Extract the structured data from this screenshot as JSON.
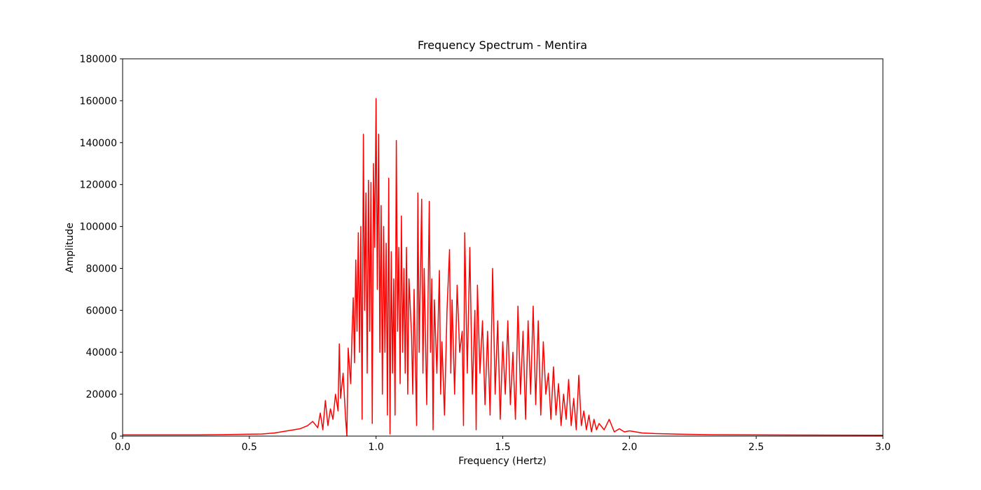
{
  "chart_data": {
    "type": "line",
    "title": "Frequency Spectrum - Mentira",
    "x_label": "Frequency (Hertz)",
    "y_label": "Amplitude",
    "xlim": [
      0,
      3
    ],
    "ylim": [
      0,
      180000
    ],
    "xticks": [
      {
        "value": 0,
        "label": "0.0"
      },
      0.5,
      {
        "value": 1,
        "label": "1.0"
      },
      1.5,
      {
        "value": 2,
        "label": "2.0"
      },
      2.5,
      {
        "value": 3,
        "label": "3.0"
      }
    ],
    "yticks": [
      0,
      20000,
      40000,
      60000,
      80000,
      100000,
      120000,
      140000,
      160000,
      180000
    ],
    "grid": false,
    "color": "#ff0000",
    "x": [
      0,
      0.1,
      0.2,
      0.3,
      0.4,
      0.5,
      0.55,
      0.6,
      0.65,
      0.7,
      0.73,
      0.75,
      0.77,
      0.78,
      0.79,
      0.8,
      0.81,
      0.82,
      0.83,
      0.84,
      0.85,
      0.855,
      0.86,
      0.87,
      0.88,
      0.885,
      0.89,
      0.9,
      0.905,
      0.91,
      0.915,
      0.92,
      0.925,
      0.93,
      0.935,
      0.94,
      0.945,
      0.95,
      0.955,
      0.96,
      0.965,
      0.97,
      0.975,
      0.98,
      0.985,
      0.99,
      0.995,
      1.0,
      1.005,
      1.01,
      1.015,
      1.02,
      1.025,
      1.03,
      1.035,
      1.04,
      1.045,
      1.05,
      1.055,
      1.06,
      1.065,
      1.07,
      1.075,
      1.08,
      1.085,
      1.09,
      1.095,
      1.1,
      1.105,
      1.11,
      1.115,
      1.12,
      1.125,
      1.13,
      1.14,
      1.145,
      1.15,
      1.16,
      1.165,
      1.17,
      1.18,
      1.185,
      1.19,
      1.2,
      1.21,
      1.215,
      1.22,
      1.225,
      1.23,
      1.24,
      1.25,
      1.255,
      1.26,
      1.27,
      1.28,
      1.29,
      1.295,
      1.3,
      1.31,
      1.32,
      1.33,
      1.34,
      1.345,
      1.35,
      1.36,
      1.37,
      1.38,
      1.39,
      1.395,
      1.4,
      1.41,
      1.42,
      1.43,
      1.44,
      1.45,
      1.46,
      1.47,
      1.48,
      1.49,
      1.5,
      1.51,
      1.52,
      1.53,
      1.54,
      1.55,
      1.56,
      1.57,
      1.58,
      1.59,
      1.6,
      1.61,
      1.62,
      1.63,
      1.64,
      1.65,
      1.66,
      1.67,
      1.68,
      1.69,
      1.7,
      1.71,
      1.72,
      1.73,
      1.74,
      1.75,
      1.76,
      1.77,
      1.78,
      1.79,
      1.8,
      1.81,
      1.82,
      1.83,
      1.84,
      1.85,
      1.86,
      1.87,
      1.88,
      1.9,
      1.92,
      1.94,
      1.96,
      1.98,
      2.0,
      2.05,
      2.1,
      2.2,
      2.3,
      2.5,
      2.7,
      3.0
    ],
    "values": [
      600,
      600,
      600,
      600,
      700,
      900,
      1000,
      1500,
      2500,
      3500,
      5000,
      7000,
      4000,
      11000,
      3000,
      17000,
      5000,
      13000,
      8000,
      20000,
      12000,
      44000,
      18000,
      30000,
      8000,
      0,
      42000,
      25000,
      48000,
      66000,
      35000,
      84000,
      50000,
      97000,
      40000,
      100000,
      8000,
      144000,
      60000,
      116000,
      30000,
      122000,
      50000,
      121000,
      6000,
      130000,
      90000,
      161000,
      70000,
      144000,
      40000,
      110000,
      20000,
      100000,
      40000,
      92000,
      10000,
      123000,
      1000,
      88000,
      30000,
      75000,
      10000,
      141000,
      50000,
      90000,
      25000,
      105000,
      40000,
      80000,
      30000,
      90000,
      20000,
      75000,
      48000,
      20000,
      70000,
      5000,
      116000,
      40000,
      113000,
      30000,
      80000,
      15000,
      112000,
      40000,
      75000,
      3000,
      65000,
      30000,
      79000,
      20000,
      45000,
      10000,
      60000,
      89000,
      30000,
      65000,
      20000,
      72000,
      40000,
      50000,
      5000,
      97000,
      30000,
      90000,
      20000,
      60000,
      3000,
      72000,
      30000,
      55000,
      15000,
      50000,
      10000,
      80000,
      20000,
      55000,
      8000,
      45000,
      20000,
      55000,
      15000,
      40000,
      8000,
      62000,
      20000,
      50000,
      8000,
      55000,
      20000,
      62000,
      15000,
      55000,
      10000,
      45000,
      20000,
      30000,
      8000,
      33000,
      10000,
      25000,
      5000,
      20000,
      8000,
      27000,
      5000,
      18000,
      3000,
      29000,
      5000,
      12000,
      3000,
      10000,
      2000,
      8000,
      3000,
      6000,
      3000,
      8000,
      2000,
      3500,
      2000,
      2500,
      1500,
      1200,
      900,
      700,
      600,
      500,
      400
    ]
  }
}
